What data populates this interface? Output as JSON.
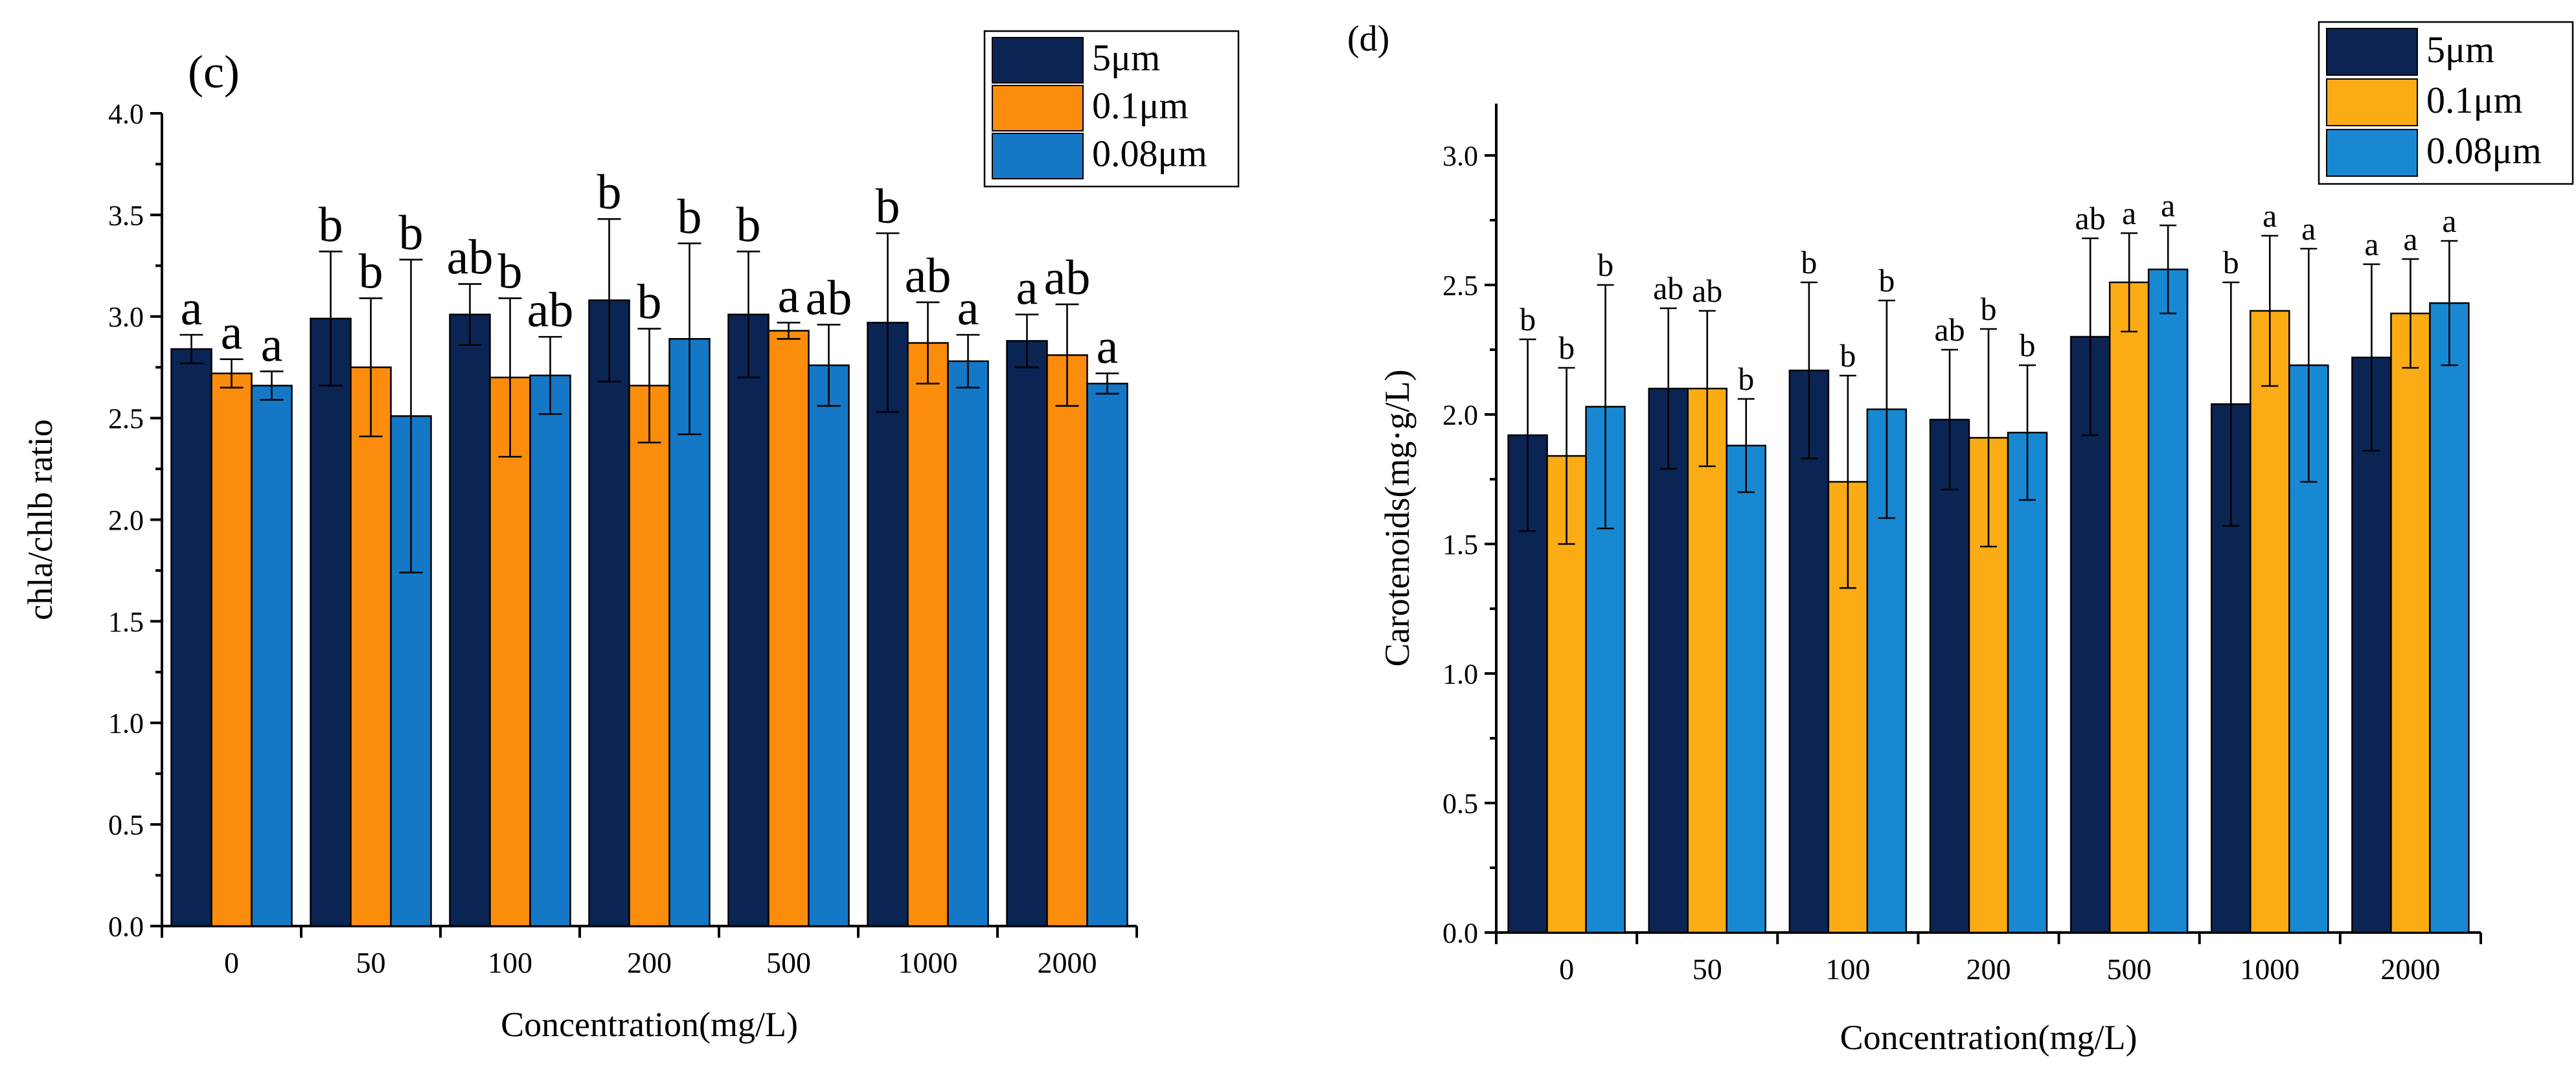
{
  "chart_data": [
    {
      "type": "bar",
      "panel_label": "(c)",
      "xlabel": "Concentration(mg/L)",
      "ylabel": "chla/chlb ratio",
      "categories": [
        "0",
        "50",
        "100",
        "200",
        "500",
        "1000",
        "2000"
      ],
      "ylim": [
        0.0,
        4.0
      ],
      "yticks": [
        "0.0",
        "0.5",
        "1.0",
        "1.5",
        "2.0",
        "2.5",
        "3.0",
        "3.5",
        "4.0"
      ],
      "grid": false,
      "legend_position": "top-right",
      "series": [
        {
          "name": "5μm",
          "color": "#0a2454",
          "values": [
            2.84,
            2.99,
            3.01,
            3.08,
            3.01,
            2.97,
            2.88
          ],
          "errors": [
            0.07,
            0.33,
            0.15,
            0.4,
            0.31,
            0.44,
            0.13
          ],
          "letters": [
            "a",
            "b",
            "ab",
            "b",
            "b",
            "b",
            "a"
          ]
        },
        {
          "name": "0.1μm",
          "color": "#fb8c0c",
          "values": [
            2.72,
            2.75,
            2.7,
            2.66,
            2.93,
            2.87,
            2.81
          ],
          "errors": [
            0.07,
            0.34,
            0.39,
            0.28,
            0.04,
            0.2,
            0.25
          ],
          "letters": [
            "a",
            "b",
            "b",
            "b",
            "a",
            "ab",
            "ab"
          ]
        },
        {
          "name": "0.08μm",
          "color": "#1478c6",
          "values": [
            2.66,
            2.51,
            2.71,
            2.89,
            2.76,
            2.78,
            2.67
          ],
          "errors": [
            0.07,
            0.77,
            0.19,
            0.47,
            0.2,
            0.13,
            0.05
          ],
          "letters": [
            "a",
            "b",
            "ab",
            "b",
            "ab",
            "a",
            "a"
          ]
        }
      ]
    },
    {
      "type": "bar",
      "panel_label": "(d)",
      "xlabel": "Concentration(mg/L)",
      "ylabel": "Carotenoids(mg·g/L)",
      "categories": [
        "0",
        "50",
        "100",
        "200",
        "500",
        "1000",
        "2000"
      ],
      "ylim": [
        0.0,
        3.2
      ],
      "yticks": [
        "0.0",
        "0.5",
        "1.0",
        "1.5",
        "2.0",
        "2.5",
        "3.0"
      ],
      "grid": false,
      "legend_position": "top-right",
      "series": [
        {
          "name": "5μm",
          "color": "#0a2454",
          "values": [
            1.92,
            2.1,
            2.17,
            1.98,
            2.3,
            2.04,
            2.22
          ],
          "errors": [
            0.37,
            0.31,
            0.34,
            0.27,
            0.38,
            0.47,
            0.36
          ],
          "letters": [
            "b",
            "ab",
            "b",
            "ab",
            "ab",
            "b",
            "a"
          ]
        },
        {
          "name": "0.1μm",
          "color": "#fbac14",
          "values": [
            1.84,
            2.1,
            1.74,
            1.91,
            2.51,
            2.4,
            2.39
          ],
          "errors": [
            0.34,
            0.3,
            0.41,
            0.42,
            0.19,
            0.29,
            0.21
          ],
          "letters": [
            "b",
            "ab",
            "b",
            "b",
            "a",
            "a",
            "a"
          ]
        },
        {
          "name": "0.08μm",
          "color": "#1888d2",
          "values": [
            2.03,
            1.88,
            2.02,
            1.93,
            2.56,
            2.19,
            2.43
          ],
          "errors": [
            0.47,
            0.18,
            0.42,
            0.26,
            0.17,
            0.45,
            0.24
          ],
          "letters": [
            "b",
            "b",
            "b",
            "b",
            "a",
            "a",
            "a"
          ]
        }
      ]
    }
  ]
}
